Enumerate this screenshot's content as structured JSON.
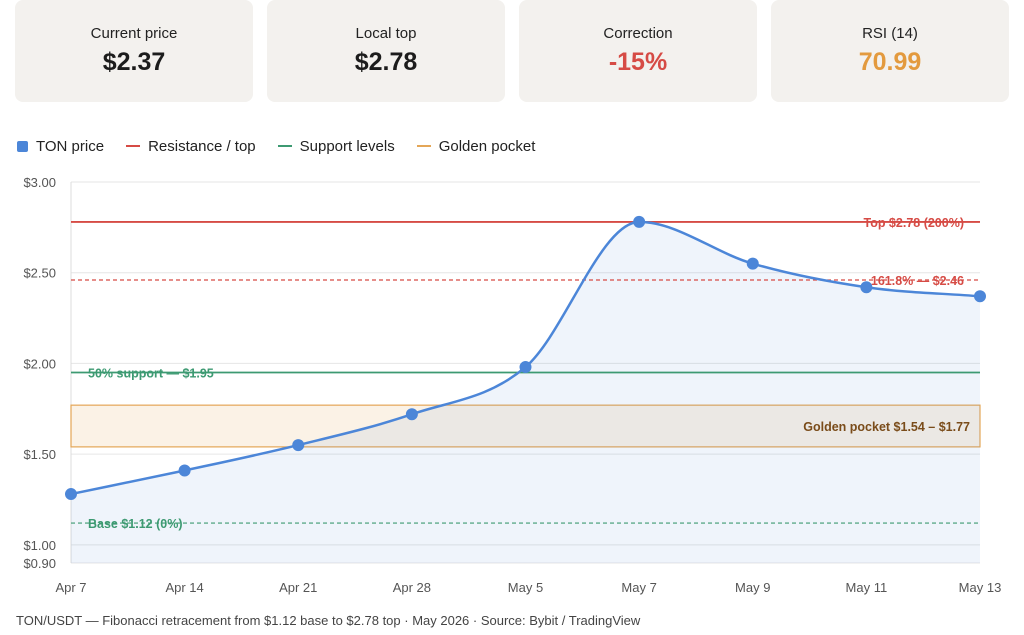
{
  "stats": [
    {
      "label": "Current price",
      "value": "$2.37",
      "color": "#1c1c1c"
    },
    {
      "label": "Local top",
      "value": "$2.78",
      "color": "#1c1c1c"
    },
    {
      "label": "Correction",
      "value": "-15%",
      "color": "#d64b45"
    },
    {
      "label": "RSI (14)",
      "value": "70.99",
      "color": "#e39a3e"
    }
  ],
  "legend": [
    {
      "label": "TON price",
      "kind": "box",
      "color": "#4c86d8"
    },
    {
      "label": "Resistance / top",
      "kind": "line",
      "color": "#d64b45"
    },
    {
      "label": "Support levels",
      "kind": "line",
      "color": "#3d9a72"
    },
    {
      "label": "Golden pocket",
      "kind": "line",
      "color": "#e4a657"
    }
  ],
  "chart_data": {
    "type": "line",
    "categories": [
      "Apr 7",
      "Apr 14",
      "Apr 21",
      "Apr 28",
      "May 5",
      "May 7",
      "May 9",
      "May 11",
      "May 13"
    ],
    "series": [
      {
        "name": "TON price",
        "color": "#4c86d8",
        "values": [
          1.28,
          1.41,
          1.55,
          1.72,
          1.98,
          2.78,
          2.55,
          2.42,
          2.37
        ]
      }
    ],
    "ylim": [
      0.9,
      3.0
    ],
    "yticks": [
      {
        "value": 3.0,
        "label": "$3.00"
      },
      {
        "value": 2.5,
        "label": "$2.50"
      },
      {
        "value": 2.0,
        "label": "$2.00"
      },
      {
        "value": 1.5,
        "label": "$1.50"
      },
      {
        "value": 1.0,
        "label": "$1.00"
      },
      {
        "value": 0.9,
        "label": "$0.90"
      }
    ],
    "grid": true,
    "reference_lines": [
      {
        "value": 2.78,
        "label": "Top $2.78 (200%)",
        "color": "#d64b45",
        "style": "solid",
        "label_pos": "right"
      },
      {
        "value": 2.46,
        "label": "161.8% — $2.46",
        "color": "#d64b45",
        "style": "dashed",
        "label_pos": "right"
      },
      {
        "value": 1.95,
        "label": "50% support — $1.95",
        "color": "#3d9a72",
        "style": "solid",
        "label_pos": "left"
      },
      {
        "value": 1.12,
        "label": "Base $1.12 (0%)",
        "color": "#3d9a72",
        "style": "dashed",
        "label_pos": "left"
      }
    ],
    "bands": [
      {
        "from": 1.54,
        "to": 1.77,
        "label": "Golden pocket $1.54 – $1.77",
        "color": "#e4a657"
      }
    ]
  },
  "caption": "TON/USDT — Fibonacci retracement from $1.12 base to $2.78 top · May 2026 · Source: Bybit / TradingView"
}
